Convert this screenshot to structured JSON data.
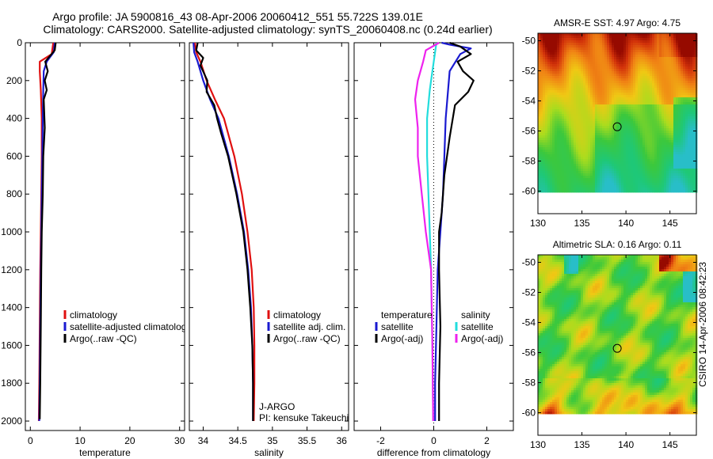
{
  "header": {
    "line1": "Argo profile: JA 5900816_43 08-Apr-2006 20060412_551 55.722S 139.01E",
    "line2": "Climatology: CARS2000. Satellite-adjusted climatology: synTS_20060408.nc (0.24d earlier)"
  },
  "side_label": "CSIRO 14-Apr-2006 08:42:23",
  "colors": {
    "climatology": "#e01010",
    "satellite": "#1a1ad0",
    "argo": "#000000",
    "salinity_satellite": "#22dddd",
    "salinity_argo": "#ee22ee"
  },
  "chart_data": [
    {
      "id": "temperature",
      "type": "line",
      "xlabel": "temperature",
      "xlim": [
        -1,
        31
      ],
      "ylim": [
        0,
        2050
      ],
      "y_reversed": true,
      "xticks": [
        0,
        10,
        20,
        30
      ],
      "yticks": [
        0,
        200,
        400,
        600,
        800,
        1000,
        1200,
        1400,
        1600,
        1800,
        2000
      ],
      "series": [
        {
          "name": "climatology",
          "color": "#e01010",
          "x": [
            4.6,
            4.3,
            1.9,
            1.9,
            2.1,
            2.3,
            2.3,
            2.2,
            2.1,
            2.0,
            1.9,
            1.8,
            1.7
          ],
          "y": [
            0,
            60,
            100,
            150,
            250,
            400,
            600,
            800,
            1000,
            1200,
            1500,
            1800,
            2000
          ]
        },
        {
          "name": "satellite-adjusted climatology",
          "color": "#1a1ad0",
          "x": [
            4.9,
            4.7,
            3.3,
            2.7,
            2.6,
            2.5,
            2.4,
            2.3,
            2.2,
            2.1,
            2.0,
            1.9,
            1.8
          ],
          "y": [
            0,
            50,
            100,
            150,
            250,
            400,
            600,
            800,
            1000,
            1200,
            1500,
            1800,
            2000
          ]
        },
        {
          "name": "Argo(..raw -QC)",
          "color": "#000000",
          "x": [
            5.1,
            4.9,
            3.0,
            3.5,
            2.9,
            3.3,
            2.7,
            2.9,
            2.6,
            2.5,
            2.3,
            2.2,
            2.1,
            2.0,
            1.9
          ],
          "y": [
            0,
            40,
            100,
            150,
            200,
            250,
            300,
            450,
            600,
            800,
            1000,
            1200,
            1500,
            1800,
            1990
          ]
        }
      ],
      "legend": {
        "placement": "center-left",
        "entries": [
          {
            "label": "climatology",
            "color": "#e01010"
          },
          {
            "label": "satellite-adjusted climatology",
            "color": "#1a1ad0"
          },
          {
            "label": "Argo(..raw -QC)",
            "color": "#000000"
          }
        ]
      }
    },
    {
      "id": "salinity",
      "type": "line",
      "xlabel": "salinity",
      "xlim": [
        33.8,
        36.1
      ],
      "ylim": [
        0,
        2050
      ],
      "y_reversed": true,
      "xticks": [
        34,
        34.5,
        35,
        35.5,
        36
      ],
      "series": [
        {
          "name": "climatology",
          "color": "#e01010",
          "x": [
            33.88,
            33.9,
            33.96,
            34.05,
            34.17,
            34.3,
            34.45,
            34.56,
            34.64,
            34.7,
            34.73,
            34.74,
            34.74,
            34.73
          ],
          "y": [
            0,
            50,
            100,
            200,
            300,
            400,
            600,
            800,
            1000,
            1200,
            1400,
            1600,
            1800,
            2000
          ]
        },
        {
          "name": "satellite adj. clim.",
          "color": "#1a1ad0",
          "x": [
            33.86,
            33.87,
            33.92,
            34.0,
            34.1,
            34.22,
            34.37,
            34.49,
            34.59,
            34.65,
            34.69,
            34.71,
            34.72,
            34.72
          ],
          "y": [
            0,
            50,
            100,
            200,
            300,
            400,
            600,
            800,
            1000,
            1200,
            1400,
            1600,
            1800,
            2000
          ]
        },
        {
          "name": "Argo(..raw -QC)",
          "color": "#000000",
          "x": [
            33.92,
            33.9,
            34.0,
            33.96,
            34.06,
            34.05,
            34.16,
            34.2,
            34.26,
            34.36,
            34.48,
            34.58,
            34.64,
            34.68,
            34.71,
            34.72,
            34.72
          ],
          "y": [
            0,
            40,
            80,
            120,
            200,
            260,
            330,
            400,
            480,
            600,
            800,
            1000,
            1200,
            1400,
            1600,
            1800,
            2000
          ]
        }
      ],
      "legend": {
        "placement": "center-right",
        "entries": [
          {
            "label": "climatology",
            "color": "#e01010"
          },
          {
            "label": "satellite adj. clim.",
            "color": "#1a1ad0"
          },
          {
            "label": "Argo(..raw -QC)",
            "color": "#000000"
          }
        ]
      },
      "annotation": [
        "J-ARGO",
        "PI: kensuke Takeuchi"
      ]
    },
    {
      "id": "difference",
      "type": "line",
      "xlabel": "difference from climatology",
      "xlim": [
        -3,
        3
      ],
      "ylim": [
        0,
        2050
      ],
      "y_reversed": true,
      "xticks": [
        -2,
        0,
        2
      ],
      "zero_line": true,
      "series": [
        {
          "name": "temperature satellite",
          "color": "#1a1ad0",
          "x": [
            0.3,
            0.6,
            1.4,
            1.0,
            0.6,
            0.45,
            0.35,
            0.25,
            0.15,
            0.1,
            0.05,
            0.05
          ],
          "y": [
            0,
            10,
            30,
            60,
            150,
            400,
            800,
            1000,
            1200,
            1500,
            1800,
            2000
          ]
        },
        {
          "name": "temperature Argo(-adj)",
          "color": "#000000",
          "x": [
            0.6,
            1.0,
            1.4,
            0.9,
            1.1,
            1.5,
            1.3,
            0.8,
            0.6,
            0.4,
            0.3,
            0.2,
            0.2,
            0.25,
            0.2,
            0.2
          ],
          "y": [
            0,
            20,
            60,
            100,
            150,
            200,
            260,
            330,
            500,
            700,
            900,
            1000,
            1200,
            1500,
            1800,
            2000
          ]
        },
        {
          "name": "salinity satellite",
          "color": "#22dddd",
          "x": [
            0.1,
            0.0,
            -0.05,
            -0.15,
            -0.25,
            -0.25,
            -0.2,
            -0.15,
            -0.1,
            -0.05,
            -0.02
          ],
          "y": [
            0,
            100,
            150,
            250,
            400,
            600,
            800,
            1000,
            1200,
            1600,
            2000
          ]
        },
        {
          "name": "salinity Argo(-adj)",
          "color": "#ee22ee",
          "x": [
            0.2,
            -0.3,
            -0.4,
            -0.6,
            -0.7,
            -0.6,
            -0.6,
            -0.45,
            -0.3,
            -0.1,
            -0.05,
            -0.02
          ],
          "y": [
            0,
            40,
            100,
            200,
            300,
            450,
            600,
            800,
            1000,
            1200,
            1600,
            2000
          ]
        }
      ],
      "legend": {
        "placement": "center",
        "groups": [
          {
            "title": "temperature",
            "entries": [
              {
                "label": "satellite",
                "color": "#1a1ad0"
              },
              {
                "label": "Argo(-adj)",
                "color": "#000000"
              }
            ]
          },
          {
            "title": "salinity",
            "entries": [
              {
                "label": "satellite",
                "color": "#22dddd"
              },
              {
                "label": "Argo(-adj)",
                "color": "#ee22ee"
              }
            ]
          }
        ]
      }
    },
    {
      "id": "sst_map",
      "type": "heatmap",
      "title": "AMSR-E SST: 4.97 Argo: 4.75",
      "xlim": [
        130,
        148
      ],
      "ylim": [
        -61.5,
        -49.5
      ],
      "data_extent": {
        "lon": [
          130,
          148
        ],
        "lat": [
          -60,
          -49.5
        ]
      },
      "xticks": [
        130,
        135,
        140,
        145
      ],
      "yticks": [
        -50,
        -52,
        -54,
        -56,
        -58,
        -60
      ],
      "marker": {
        "lon": 139.01,
        "lat": -55.72
      }
    },
    {
      "id": "sla_map",
      "type": "heatmap",
      "title": "Altimetric SLA: 0.16 Argo: 0.11",
      "xlim": [
        130,
        148
      ],
      "ylim": [
        -61.5,
        -49.5
      ],
      "data_extent": {
        "lon": [
          130,
          148
        ],
        "lat": [
          -60,
          -49.5
        ]
      },
      "xticks": [
        130,
        135,
        140,
        145
      ],
      "yticks": [
        -50,
        -52,
        -54,
        -56,
        -58,
        -60
      ],
      "marker": {
        "lon": 139.01,
        "lat": -55.72
      }
    }
  ]
}
